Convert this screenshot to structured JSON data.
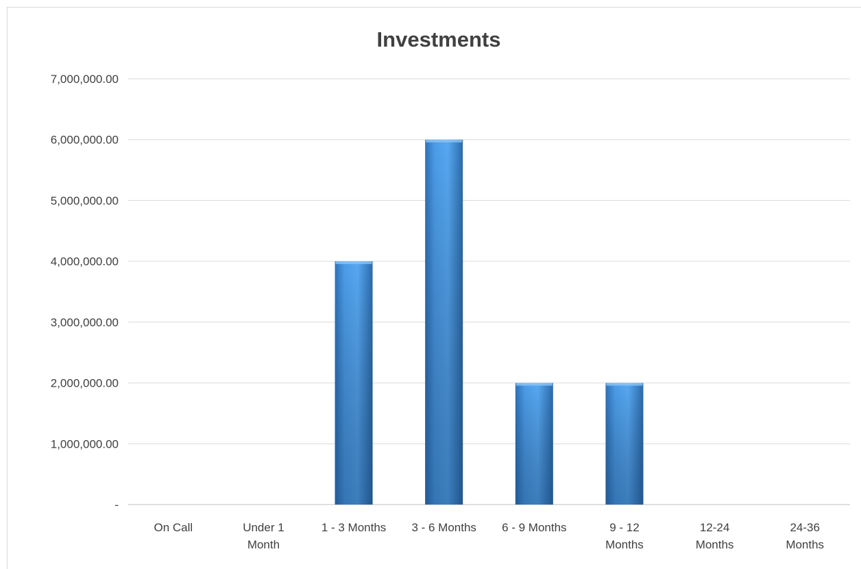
{
  "chart_data": {
    "type": "bar",
    "title": "Investments",
    "xlabel": "",
    "ylabel": "",
    "categories": [
      [
        "On Call"
      ],
      [
        "Under 1",
        "Month"
      ],
      [
        "1 - 3 Months"
      ],
      [
        "3 - 6 Months"
      ],
      [
        "6 - 9 Months"
      ],
      [
        "9 - 12",
        "Months"
      ],
      [
        "12-24",
        "Months"
      ],
      [
        "24-36",
        "Months"
      ]
    ],
    "values": [
      0,
      0,
      4000000,
      6000000,
      2000000,
      2000000,
      0,
      0
    ],
    "ylim": [
      0,
      7000000
    ],
    "yticks": [
      0,
      1000000,
      2000000,
      3000000,
      4000000,
      5000000,
      6000000,
      7000000
    ],
    "ytick_labels": [
      "-",
      "1,000,000.00",
      "2,000,000.00",
      "3,000,000.00",
      "4,000,000.00",
      "5,000,000.00",
      "6,000,000.00",
      "7,000,000.00"
    ],
    "grid": true,
    "legend": "none",
    "colors": {
      "bar": "#4a9be8",
      "bar_dark": "#2e6fb4",
      "grid": "#d9d9d9",
      "text": "#404040"
    }
  }
}
